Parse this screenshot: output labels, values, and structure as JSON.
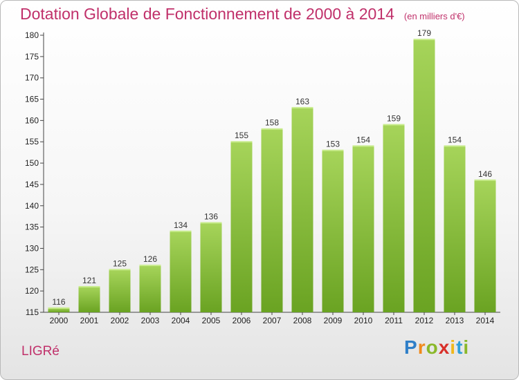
{
  "header": {
    "title": "Dotation Globale de Fonctionnement de 2000 à 2014",
    "unit": "(en milliers d'€)"
  },
  "commune": "LIGRé",
  "brand": {
    "name": "Proxiti",
    "letters": [
      {
        "char": "P",
        "color": "#2f7fc8"
      },
      {
        "char": "r",
        "color": "#f08a1c"
      },
      {
        "char": "o",
        "color": "#8ab82a"
      },
      {
        "char": "x",
        "color": "#d8302a"
      },
      {
        "char": "i",
        "color": "#f0b81c"
      },
      {
        "char": "t",
        "color": "#2f9fd8"
      },
      {
        "char": "i",
        "color": "#8ab82a"
      }
    ]
  },
  "colors": {
    "bar_light": "#a6d45a",
    "bar_dark": "#6aa322",
    "title": "#c0306a"
  },
  "chart_data": {
    "type": "bar",
    "title": "Dotation Globale de Fonctionnement de 2000 à 2014",
    "subtitle": "(en milliers d'€)",
    "categories": [
      "2000",
      "2001",
      "2002",
      "2003",
      "2004",
      "2005",
      "2006",
      "2007",
      "2008",
      "2009",
      "2010",
      "2011",
      "2012",
      "2013",
      "2014"
    ],
    "values": [
      116,
      121,
      125,
      126,
      134,
      136,
      155,
      158,
      163,
      153,
      154,
      159,
      179,
      154,
      146
    ],
    "ylim": [
      115,
      180
    ],
    "yticks": [
      115,
      120,
      125,
      130,
      135,
      140,
      145,
      150,
      155,
      160,
      165,
      170,
      175,
      180
    ],
    "grid": false,
    "legend": "none"
  }
}
